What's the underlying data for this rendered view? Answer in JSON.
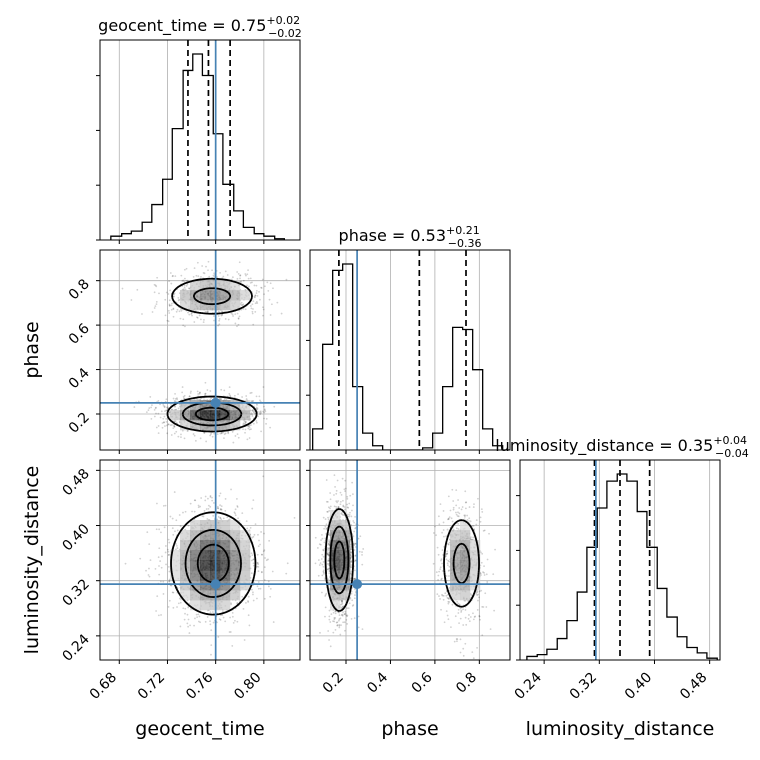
{
  "chart_data": {
    "type": "corner",
    "parameters": [
      "geocent_time",
      "phase",
      "luminosity_distance"
    ],
    "truths": {
      "geocent_time": 0.76,
      "phase": 0.25,
      "luminosity_distance": 0.315
    },
    "colors": {
      "truth": "#4682b4",
      "contour": "#000000",
      "grid": "#b0b0b0"
    },
    "titles": [
      {
        "param": "geocent_time",
        "text": "geocent_time = 0.75",
        "sup": "+0.02",
        "sub": "−0.02"
      },
      {
        "param": "phase",
        "text": "phase = 0.53",
        "sup": "+0.21",
        "sub": "−0.36"
      },
      {
        "param": "luminosity_distance",
        "text": "luminosity_distance = 0.35",
        "sup": "+0.04",
        "sub": "−0.04"
      }
    ],
    "axes": {
      "geocent_time": {
        "range": [
          0.664,
          0.83
        ],
        "ticks": [
          0.68,
          0.72,
          0.76,
          0.8
        ],
        "ticklabels": [
          "0.68",
          "0.72",
          "0.76",
          "0.80"
        ]
      },
      "phase": {
        "range": [
          0.038,
          0.938
        ],
        "ticks": [
          0.2,
          0.4,
          0.6,
          0.8
        ],
        "ticklabels": [
          "0.2",
          "0.4",
          "0.6",
          "0.8"
        ]
      },
      "luminosity_distance": {
        "range": [
          0.205,
          0.495
        ],
        "ticks": [
          0.24,
          0.32,
          0.4,
          0.48
        ],
        "ticklabels": [
          "0.24",
          "0.32",
          "0.40",
          "0.48"
        ]
      }
    },
    "histograms": [
      {
        "param": "geocent_time",
        "bin_edges": [
          0.673,
          0.682,
          0.69,
          0.699,
          0.707,
          0.716,
          0.724,
          0.733,
          0.741,
          0.749,
          0.758,
          0.766,
          0.775,
          0.783,
          0.792,
          0.8,
          0.809,
          0.817
        ],
        "counts": [
          3,
          5,
          7,
          14,
          28,
          48,
          88,
          134,
          147,
          130,
          84,
          44,
          23,
          10,
          5,
          3,
          1
        ],
        "quantiles": [
          0.737,
          0.754,
          0.772
        ]
      },
      {
        "param": "phase",
        "bin_edges": [
          0.05,
          0.095,
          0.14,
          0.185,
          0.23,
          0.275,
          0.32,
          0.365,
          0.41,
          0.455,
          0.5,
          0.545,
          0.59,
          0.635,
          0.68,
          0.725,
          0.77,
          0.815,
          0.86,
          0.905,
          0.95
        ],
        "counts": [
          10,
          50,
          85,
          88,
          30,
          8,
          2,
          0,
          0,
          0,
          0,
          1,
          8,
          30,
          58,
          57,
          38,
          10,
          2,
          0
        ],
        "quantiles": [
          0.168,
          0.53,
          0.74
        ]
      },
      {
        "param": "luminosity_distance",
        "bin_edges": [
          0.215,
          0.23,
          0.244,
          0.259,
          0.273,
          0.288,
          0.302,
          0.317,
          0.331,
          0.346,
          0.36,
          0.375,
          0.389,
          0.404,
          0.418,
          0.433,
          0.447,
          0.462,
          0.476,
          0.491
        ],
        "counts": [
          2,
          3,
          6,
          12,
          22,
          38,
          63,
          85,
          100,
          104,
          100,
          83,
          63,
          40,
          24,
          13,
          7,
          4,
          1
        ],
        "quantiles": [
          0.313,
          0.35,
          0.393
        ]
      }
    ],
    "density": [
      {
        "x": "geocent_time",
        "y": "phase",
        "blobs": [
          {
            "cx": 0.757,
            "cy": 0.2,
            "sx": 0.018,
            "sy": 0.038,
            "rho": 0.0,
            "weight": 1.0
          },
          {
            "cx": 0.757,
            "cy": 0.73,
            "sx": 0.019,
            "sy": 0.045,
            "rho": 0.0,
            "weight": 0.55
          }
        ],
        "level_fracs": [
          0.85,
          0.55,
          0.28
        ]
      },
      {
        "x": "geocent_time",
        "y": "luminosity_distance",
        "blobs": [
          {
            "cx": 0.758,
            "cy": 0.345,
            "sx": 0.017,
            "sy": 0.036,
            "rho": 0.0,
            "weight": 1.0
          }
        ],
        "level_fracs": [
          0.85,
          0.55,
          0.28
        ]
      },
      {
        "x": "phase",
        "y": "luminosity_distance",
        "blobs": [
          {
            "cx": 0.17,
            "cy": 0.35,
            "sx": 0.03,
            "sy": 0.036,
            "rho": 0.0,
            "weight": 1.0
          },
          {
            "cx": 0.72,
            "cy": 0.345,
            "sx": 0.045,
            "sy": 0.036,
            "rho": 0.0,
            "weight": 0.55
          }
        ],
        "level_fracs": [
          0.85,
          0.55,
          0.28
        ]
      }
    ],
    "axis_labels": {
      "x": [
        "geocent_time",
        "phase",
        "luminosity_distance"
      ],
      "y": [
        "phase",
        "luminosity_distance"
      ]
    },
    "grid": true,
    "legend": null
  }
}
